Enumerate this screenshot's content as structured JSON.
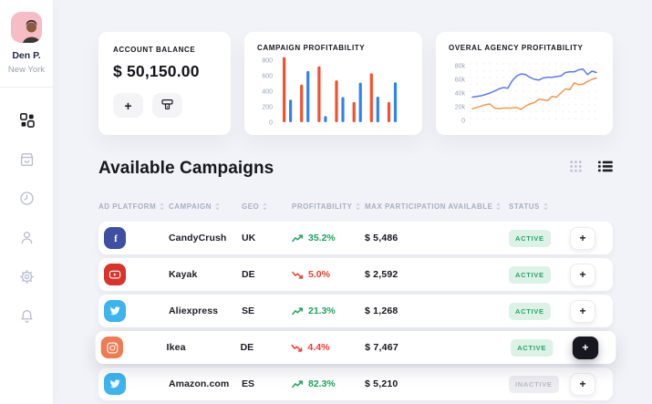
{
  "sidebar": {
    "user": {
      "name": "Den P.",
      "location": "New York"
    },
    "nav": [
      {
        "icon": "dashboard-icon",
        "active": true
      },
      {
        "icon": "store-icon",
        "active": false
      },
      {
        "icon": "history-icon",
        "active": false
      },
      {
        "icon": "profile-icon",
        "active": false
      },
      {
        "icon": "settings-icon",
        "active": false
      },
      {
        "icon": "notifications-icon",
        "active": false
      }
    ]
  },
  "balance_card": {
    "title": "ACCOUNT BALANCE",
    "amount": "$ 50,150.00",
    "add_glyph": "+"
  },
  "section": {
    "title": "Available Campaigns"
  },
  "view_controls": {
    "options": [
      "grid",
      "list"
    ],
    "active": "list"
  },
  "table": {
    "headers": [
      "AD PLATFORM",
      "CAMPAIGN",
      "GEO",
      "PROFITABILITY",
      "MAX PARTICIPATION AVAILABLE",
      "STATUS"
    ],
    "add_glyph": "+",
    "rows": [
      {
        "platform": "facebook",
        "campaign": "CandyCrush",
        "geo": "UK",
        "trend": "up",
        "profitability": "35.2%",
        "max_participation": "$ 5,486",
        "status": "ACTIVE",
        "highlighted": false
      },
      {
        "platform": "youtube",
        "campaign": "Kayak",
        "geo": "DE",
        "trend": "down",
        "profitability": "5.0%",
        "max_participation": "$ 2,592",
        "status": "ACTIVE",
        "highlighted": false
      },
      {
        "platform": "twitter",
        "campaign": "Aliexpress",
        "geo": "SE",
        "trend": "up",
        "profitability": "21.3%",
        "max_participation": "$ 1,268",
        "status": "ACTIVE",
        "highlighted": false
      },
      {
        "platform": "instagram",
        "campaign": "Ikea",
        "geo": "DE",
        "trend": "down",
        "profitability": "4.4%",
        "max_participation": "$ 7,467",
        "status": "ACTIVE",
        "highlighted": true
      },
      {
        "platform": "twitter",
        "campaign": "Amazon.com",
        "geo": "ES",
        "trend": "up",
        "profitability": "82.3%",
        "max_participation": "$ 5,210",
        "status": "INACTIVE",
        "highlighted": false
      }
    ]
  },
  "platforms": {
    "facebook": {
      "color": "#3e50a1"
    },
    "youtube": {
      "color": "#d8332d"
    },
    "twitter": {
      "color": "#3cb4f0"
    },
    "instagram": {
      "color": "#ee7b52"
    }
  },
  "colors": {
    "positive": "#1ca45f",
    "negative": "#ee3b2f",
    "badge_active_bg": "#ddf2e7",
    "badge_active_text": "#27a567",
    "badge_inactive_bg": "#ececf1",
    "badge_inactive_text": "#b7bac6"
  },
  "chart_data": [
    {
      "type": "bar",
      "title": "CAMPAIGN PROFITABILITY",
      "categories": [
        "1",
        "2",
        "3",
        "4",
        "5",
        "6",
        "7"
      ],
      "series": [
        {
          "name": "series-red",
          "color": "#f4512c",
          "values": [
            840,
            485,
            720,
            540,
            260,
            630,
            260
          ]
        },
        {
          "name": "series-blue",
          "color": "#2e85ec",
          "values": [
            290,
            660,
            80,
            325,
            510,
            330,
            515
          ]
        }
      ],
      "yticks": [
        800,
        600,
        400,
        200,
        0
      ],
      "ylim": [
        0,
        900
      ],
      "grid": false,
      "legend": false
    },
    {
      "type": "line",
      "title": "OVERAL AGENCY PROFITABILITY",
      "unit": "k",
      "series": [
        {
          "name": "series-blue",
          "color": "#5d78f5",
          "values": [
            34,
            35,
            36,
            38,
            40,
            43,
            46,
            48,
            47,
            58,
            65,
            68,
            67,
            63,
            60,
            59,
            62,
            63,
            63,
            64,
            65,
            70,
            71,
            71,
            74,
            75,
            67,
            72,
            70
          ]
        },
        {
          "name": "series-orange",
          "color": "#f2994a",
          "values": [
            17,
            19,
            21,
            23,
            24,
            18,
            17,
            18,
            18,
            18,
            19,
            16,
            21,
            24,
            26,
            31,
            30,
            29,
            35,
            34,
            40,
            46,
            45,
            55,
            52,
            53,
            57,
            60,
            62
          ]
        }
      ],
      "yticks": [
        "80k",
        "60k",
        "40k",
        "20k",
        "0"
      ],
      "ylim": [
        0,
        80000
      ],
      "grid": "dotted",
      "legend": false
    }
  ]
}
